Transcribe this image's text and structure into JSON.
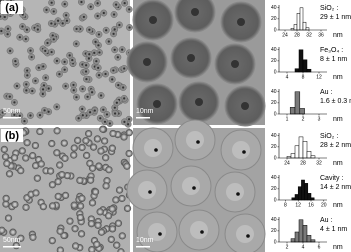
{
  "panels": [
    {
      "label": "(a)",
      "scale_left": "50nm",
      "scale_middle": "10nm"
    },
    {
      "label": "(b)",
      "scale_left": "50nm",
      "scale_middle": "10nm"
    }
  ],
  "histograms": [
    {
      "name": "SiO₂ :",
      "result": "29 ± 1 nm",
      "unit": "nm",
      "color": "#ffffff",
      "xlim": [
        22,
        38
      ],
      "xticks": [
        24,
        28,
        32,
        36
      ],
      "ylim": [
        0,
        45
      ],
      "yticks": [
        0,
        20,
        40
      ],
      "bins": [
        26,
        27,
        28,
        29,
        30,
        31,
        32
      ],
      "counts": [
        3,
        10,
        30,
        40,
        14,
        4
      ]
    },
    {
      "name": "Fe₃O₄ :",
      "result": "8 ± 1 nm",
      "unit": "nm",
      "color": "#111111",
      "xlim": [
        2,
        14
      ],
      "xticks": [
        4,
        8,
        12
      ],
      "ylim": [
        0,
        45
      ],
      "yticks": [
        0,
        20,
        40
      ],
      "bins": [
        6,
        7,
        8,
        9,
        10
      ],
      "counts": [
        6,
        40,
        22,
        5
      ]
    },
    {
      "name": "Au :",
      "result": "1.6 ± 0.3 nm",
      "unit": "nm",
      "color": "#7a7a7a",
      "xlim": [
        0.5,
        3.5
      ],
      "xticks": [
        1,
        2,
        3
      ],
      "ylim": [
        0,
        45
      ],
      "yticks": [
        0,
        20,
        40
      ],
      "bins": [
        1.2,
        1.5,
        1.8,
        2.1
      ],
      "counts": [
        12,
        40,
        10
      ]
    },
    {
      "name": "SiO₂ :",
      "result": "28 ± 2 nm",
      "unit": "nm",
      "color": "#ffffff",
      "xlim": [
        22,
        34
      ],
      "xticks": [
        24,
        28,
        32
      ],
      "ylim": [
        0,
        45
      ],
      "yticks": [
        0,
        20,
        40
      ],
      "bins": [
        24,
        25,
        26,
        27,
        28,
        29,
        30,
        31
      ],
      "counts": [
        3,
        8,
        22,
        38,
        30,
        12,
        4
      ]
    },
    {
      "name": "Cavity :",
      "result": "14 ± 2 nm",
      "unit": "nm",
      "color": "#111111",
      "xlim": [
        6,
        21
      ],
      "xticks": [
        8,
        12,
        16,
        20
      ],
      "ylim": [
        0,
        45
      ],
      "yticks": [
        0,
        20,
        40
      ],
      "bins": [
        10,
        11,
        12,
        13,
        14,
        15,
        16,
        17
      ],
      "counts": [
        4,
        10,
        24,
        36,
        30,
        12,
        4
      ]
    },
    {
      "name": "Au :",
      "result": "4 ± 1 nm",
      "unit": "nm",
      "color": "#7a7a7a",
      "xlim": [
        1,
        7
      ],
      "xticks": [
        2,
        4,
        6
      ],
      "ylim": [
        0,
        45
      ],
      "yticks": [
        0,
        20,
        40
      ],
      "bins": [
        2.5,
        3,
        3.5,
        4,
        4.5,
        5,
        5.5
      ],
      "counts": [
        6,
        18,
        40,
        30,
        12,
        4
      ]
    }
  ]
}
